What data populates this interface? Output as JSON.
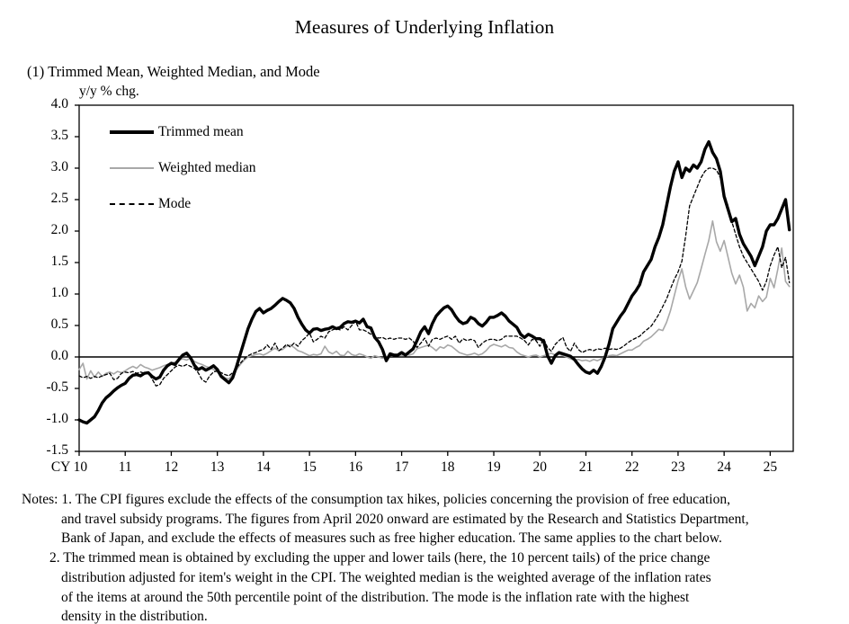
{
  "page": {
    "title": "Measures of Underlying Inflation",
    "subtitle": "(1) Trimmed Mean, Weighted Median, and Mode"
  },
  "chart_data": {
    "type": "line",
    "title": "Measures of Underlying Inflation",
    "subtitle": "(1) Trimmed Mean, Weighted Median, and Mode",
    "y_unit_label": "y/y % chg.",
    "x_start": "2010-01",
    "x_frequency": "monthly",
    "x_axis_prefix": "CY",
    "x_tick_labels": [
      "CY 10",
      "11",
      "12",
      "13",
      "14",
      "15",
      "16",
      "17",
      "18",
      "19",
      "20",
      "21",
      "22",
      "23",
      "24",
      "25"
    ],
    "y_tick_labels": [
      "4.0",
      "3.5",
      "3.0",
      "2.5",
      "2.0",
      "1.5",
      "1.0",
      "0.5",
      "0.0",
      "-0.5",
      "-1.0",
      "-1.5"
    ],
    "ylim": [
      -1.5,
      4.0
    ],
    "grid": false,
    "zero_line": true,
    "legend_position": "top-left",
    "colors": {
      "black": "#000000",
      "gray": "#a8a8a8"
    },
    "series": [
      {
        "name": "Trimmed mean",
        "style": "solid-thick",
        "color": "#000000",
        "values": [
          -1.0,
          -1.03,
          -1.05,
          -1.0,
          -0.95,
          -0.85,
          -0.73,
          -0.65,
          -0.6,
          -0.54,
          -0.49,
          -0.45,
          -0.42,
          -0.34,
          -0.29,
          -0.28,
          -0.3,
          -0.26,
          -0.25,
          -0.31,
          -0.35,
          -0.32,
          -0.21,
          -0.14,
          -0.1,
          -0.12,
          -0.04,
          0.03,
          0.06,
          -0.01,
          -0.13,
          -0.2,
          -0.17,
          -0.21,
          -0.18,
          -0.14,
          -0.2,
          -0.31,
          -0.36,
          -0.41,
          -0.33,
          -0.15,
          0.05,
          0.25,
          0.45,
          0.6,
          0.72,
          0.77,
          0.7,
          0.74,
          0.77,
          0.82,
          0.88,
          0.93,
          0.9,
          0.86,
          0.77,
          0.63,
          0.52,
          0.43,
          0.38,
          0.44,
          0.45,
          0.42,
          0.44,
          0.45,
          0.48,
          0.45,
          0.47,
          0.53,
          0.56,
          0.55,
          0.57,
          0.54,
          0.6,
          0.48,
          0.46,
          0.31,
          0.24,
          0.12,
          -0.06,
          0.05,
          0.03,
          0.03,
          0.07,
          0.03,
          0.08,
          0.13,
          0.26,
          0.4,
          0.48,
          0.37,
          0.53,
          0.65,
          0.72,
          0.78,
          0.81,
          0.75,
          0.65,
          0.57,
          0.53,
          0.55,
          0.63,
          0.6,
          0.53,
          0.49,
          0.55,
          0.63,
          0.63,
          0.66,
          0.7,
          0.65,
          0.57,
          0.52,
          0.47,
          0.36,
          0.31,
          0.36,
          0.33,
          0.29,
          0.29,
          0.25,
          0.02,
          -0.1,
          0.02,
          0.07,
          0.05,
          0.03,
          0.01,
          -0.04,
          -0.12,
          -0.19,
          -0.24,
          -0.26,
          -0.21,
          -0.26,
          -0.15,
          0.0,
          0.2,
          0.45,
          0.55,
          0.65,
          0.73,
          0.85,
          0.97,
          1.05,
          1.15,
          1.35,
          1.45,
          1.55,
          1.75,
          1.9,
          2.1,
          2.4,
          2.7,
          2.95,
          3.1,
          2.85,
          3.0,
          2.95,
          3.05,
          3.0,
          3.1,
          3.3,
          3.42,
          3.25,
          3.15,
          2.95,
          2.55,
          2.35,
          2.15,
          2.2,
          1.95,
          1.8,
          1.7,
          1.6,
          1.45,
          1.6,
          1.75,
          2.0,
          2.1,
          2.1,
          2.2,
          2.35,
          2.5,
          2.02
        ]
      },
      {
        "name": "Weighted median",
        "style": "solid-thin",
        "color": "#a8a8a8",
        "values": [
          -0.2,
          -0.1,
          -0.35,
          -0.22,
          -0.32,
          -0.24,
          -0.31,
          -0.26,
          -0.24,
          -0.27,
          -0.23,
          -0.25,
          -0.22,
          -0.18,
          -0.15,
          -0.18,
          -0.12,
          -0.16,
          -0.18,
          -0.21,
          -0.19,
          -0.17,
          -0.14,
          -0.12,
          -0.1,
          -0.08,
          -0.05,
          -0.03,
          -0.05,
          -0.02,
          -0.07,
          -0.1,
          -0.12,
          -0.15,
          -0.17,
          -0.2,
          -0.24,
          -0.28,
          -0.33,
          -0.35,
          -0.28,
          -0.2,
          -0.12,
          -0.05,
          0.0,
          0.02,
          0.04,
          0.05,
          0.03,
          0.06,
          0.1,
          0.14,
          0.1,
          0.12,
          0.17,
          0.19,
          0.15,
          0.1,
          0.08,
          0.05,
          0.02,
          0.04,
          0.03,
          0.05,
          0.17,
          0.08,
          0.05,
          0.09,
          0.03,
          0.02,
          0.09,
          0.04,
          0.02,
          0.05,
          0.03,
          0.0,
          -0.02,
          0.02,
          0.0,
          -0.02,
          0.0,
          0.02,
          0.03,
          0.03,
          0.02,
          0.04,
          0.03,
          0.05,
          0.13,
          0.15,
          0.17,
          0.19,
          0.15,
          0.1,
          0.16,
          0.14,
          0.19,
          0.17,
          0.12,
          0.07,
          0.05,
          0.03,
          0.04,
          0.06,
          0.03,
          0.05,
          0.1,
          0.17,
          0.2,
          0.18,
          0.16,
          0.19,
          0.15,
          0.14,
          0.08,
          0.04,
          0.02,
          0.0,
          0.02,
          0.03,
          0.0,
          0.02,
          0.04,
          0.06,
          0.03,
          0.05,
          0.02,
          0.0,
          -0.03,
          -0.05,
          -0.04,
          -0.06,
          -0.05,
          -0.07,
          -0.04,
          -0.06,
          -0.03,
          0.0,
          0.02,
          0.03,
          0.02,
          0.05,
          0.08,
          0.11,
          0.11,
          0.15,
          0.18,
          0.25,
          0.28,
          0.32,
          0.38,
          0.44,
          0.42,
          0.55,
          0.73,
          0.97,
          1.21,
          1.4,
          1.11,
          0.92,
          1.05,
          1.18,
          1.4,
          1.63,
          1.85,
          2.16,
          1.83,
          1.68,
          1.85,
          1.59,
          1.33,
          1.16,
          1.3,
          1.11,
          0.73,
          0.85,
          0.78,
          0.97,
          0.88,
          0.95,
          1.25,
          1.1,
          1.4,
          1.73,
          1.2,
          1.12
        ]
      },
      {
        "name": "Mode",
        "style": "dashed",
        "color": "#000000",
        "values": [
          -0.3,
          -0.33,
          -0.31,
          -0.34,
          -0.31,
          -0.33,
          -0.3,
          -0.28,
          -0.26,
          -0.36,
          -0.34,
          -0.26,
          -0.24,
          -0.25,
          -0.23,
          -0.26,
          -0.24,
          -0.26,
          -0.25,
          -0.35,
          -0.46,
          -0.44,
          -0.34,
          -0.28,
          -0.22,
          -0.16,
          -0.13,
          -0.15,
          -0.12,
          -0.15,
          -0.18,
          -0.25,
          -0.36,
          -0.4,
          -0.3,
          -0.24,
          -0.22,
          -0.25,
          -0.28,
          -0.3,
          -0.25,
          -0.17,
          -0.1,
          -0.03,
          0.02,
          0.05,
          0.07,
          0.1,
          0.12,
          0.19,
          0.12,
          0.22,
          0.1,
          0.14,
          0.2,
          0.16,
          0.22,
          0.17,
          0.26,
          0.31,
          0.38,
          0.24,
          0.28,
          0.33,
          0.3,
          0.4,
          0.43,
          0.45,
          0.43,
          0.48,
          0.43,
          0.5,
          0.57,
          0.43,
          0.43,
          0.4,
          0.36,
          0.33,
          0.3,
          0.31,
          0.28,
          0.3,
          0.28,
          0.3,
          0.3,
          0.28,
          0.3,
          0.25,
          0.15,
          0.22,
          0.3,
          0.17,
          0.28,
          0.3,
          0.28,
          0.31,
          0.33,
          0.28,
          0.33,
          0.22,
          0.29,
          0.26,
          0.28,
          0.26,
          0.15,
          0.22,
          0.26,
          0.28,
          0.28,
          0.26,
          0.28,
          0.33,
          0.33,
          0.33,
          0.33,
          0.3,
          0.26,
          0.19,
          0.28,
          0.26,
          0.17,
          0.29,
          0.15,
          0.09,
          0.2,
          0.26,
          0.31,
          0.15,
          0.09,
          0.22,
          0.12,
          0.07,
          0.1,
          0.12,
          0.1,
          0.13,
          0.12,
          0.14,
          0.12,
          0.13,
          0.12,
          0.14,
          0.18,
          0.23,
          0.27,
          0.3,
          0.33,
          0.39,
          0.44,
          0.49,
          0.58,
          0.68,
          0.8,
          0.92,
          1.08,
          1.23,
          1.35,
          1.52,
          1.93,
          2.4,
          2.55,
          2.7,
          2.85,
          2.95,
          3.0,
          3.0,
          2.97,
          2.85,
          2.6,
          2.4,
          2.15,
          1.95,
          1.75,
          1.6,
          1.5,
          1.4,
          1.3,
          1.2,
          1.06,
          1.2,
          1.45,
          1.62,
          1.75,
          1.42,
          1.58,
          1.18
        ]
      }
    ]
  },
  "notes": {
    "lines": [
      {
        "indent": "none",
        "text": "Notes: 1. The CPI figures exclude the effects of the consumption tax hikes, policies concerning the provision of free education,"
      },
      {
        "indent": "hang",
        "text": "and travel subsidy programs. The figures from April 2020 onward are estimated by the Research and Statistics Department,"
      },
      {
        "indent": "hang",
        "text": "Bank of Japan, and exclude the effects of measures such as free higher education. The same applies to the chart below."
      },
      {
        "indent": "num",
        "text": "2. The trimmed mean is obtained by excluding the upper and lower tails (here, the 10 percent tails) of the price change"
      },
      {
        "indent": "hang",
        "text": "distribution adjusted for item's weight in the CPI. The weighted median is the weighted average of the inflation rates"
      },
      {
        "indent": "hang",
        "text": "of the items at around the 50th percentile point of the distribution. The mode is the inflation rate with the highest"
      },
      {
        "indent": "hang",
        "text": "density in the distribution."
      }
    ]
  }
}
